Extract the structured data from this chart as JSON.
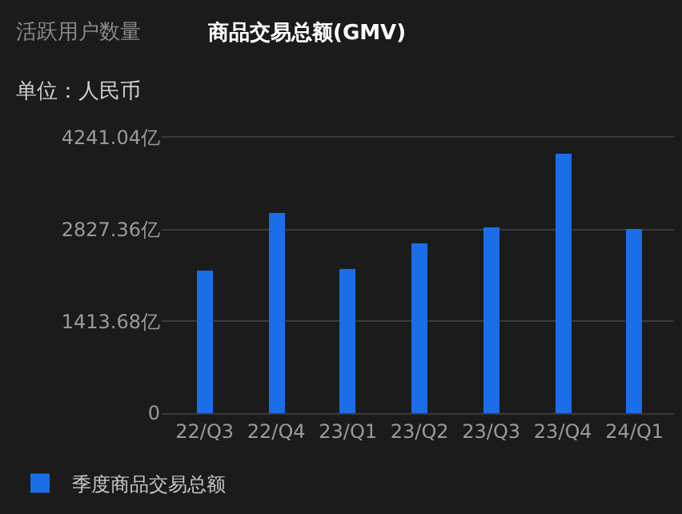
{
  "chart_data": {
    "type": "bar",
    "title": "商品交易总额(GMV)",
    "subtitle": "单位：人民币",
    "annotations": [
      "活跃用户数量"
    ],
    "categories": [
      "22/Q3",
      "22/Q4",
      "23/Q1",
      "23/Q2",
      "23/Q3",
      "23/Q4",
      "24/Q1"
    ],
    "series": [
      {
        "name": "季度商品交易总额",
        "color": "#1a6ee8",
        "values": [
          2200,
          3090,
          2220,
          2620,
          2870,
          3990,
          2840
        ]
      }
    ],
    "ylim": [
      0,
      4241.04
    ],
    "yticks": [
      0,
      {
        "value": 1413.68,
        "label": "1413.68亿"
      },
      {
        "value": 2827.36,
        "label": "2827.36亿"
      },
      {
        "value": 4241.04,
        "label": "4241.04亿"
      }
    ],
    "grid": "y",
    "legend": "bottom left"
  }
}
